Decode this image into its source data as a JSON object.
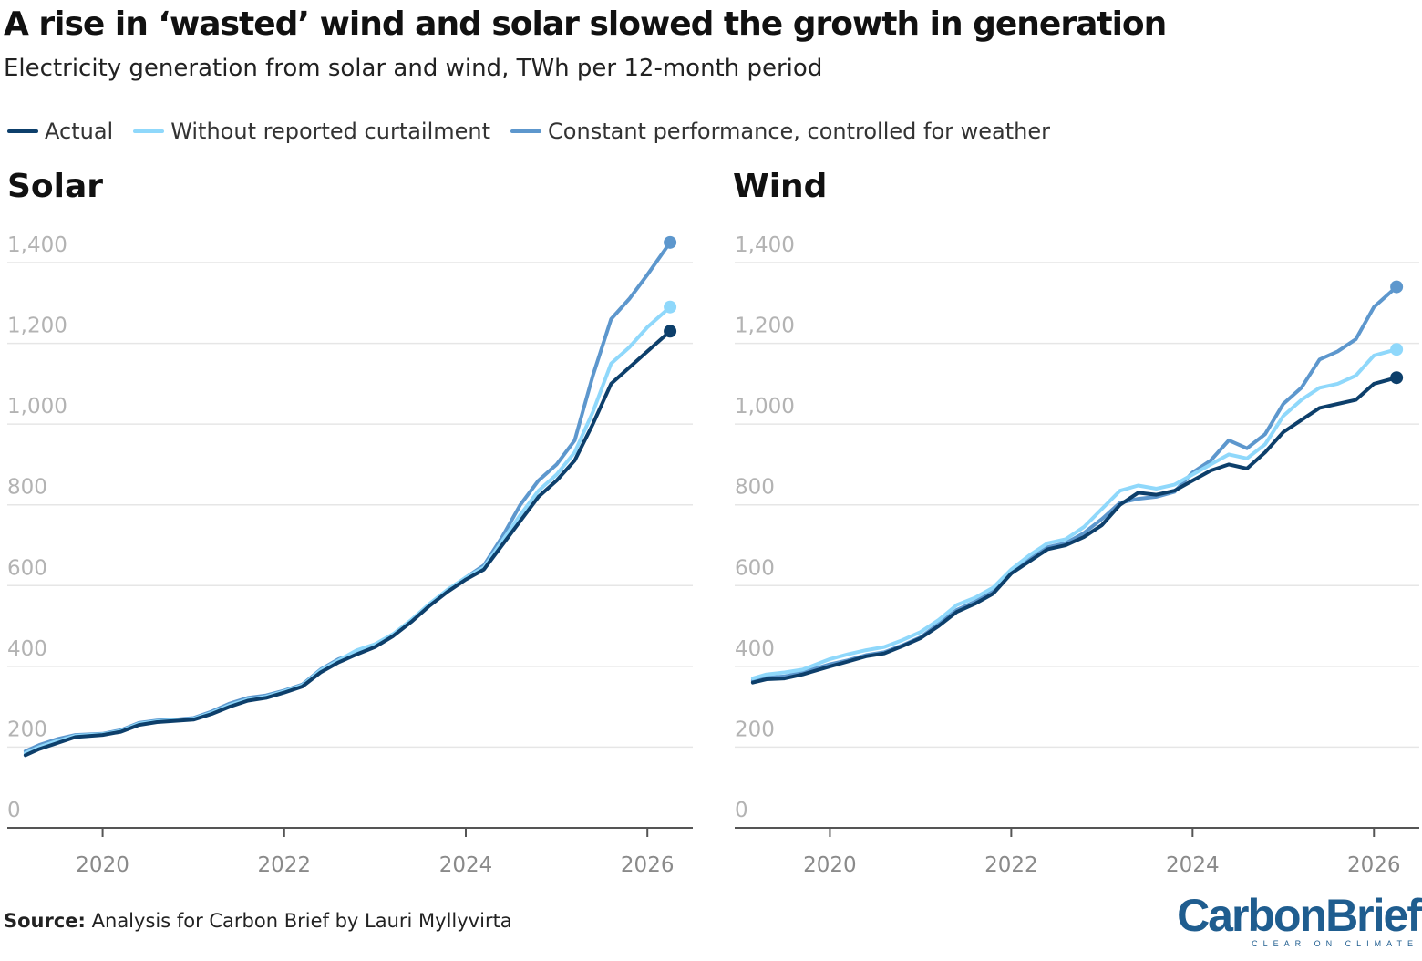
{
  "header": {
    "title": "A rise in ‘wasted’ wind and solar slowed the growth in generation",
    "subtitle": "Electricity generation from solar and wind, TWh per 12-month period"
  },
  "legend": [
    {
      "label": "Actual",
      "color": "#0d3f6b"
    },
    {
      "label": "Without reported curtailment",
      "color": "#8fd8fb"
    },
    {
      "label": "Constant performance, controlled for weather",
      "color": "#5d97cd"
    }
  ],
  "footer": {
    "source_label": "Source:",
    "source_text": "Analysis for Carbon Brief by Lauri Myllyvirta",
    "logo": "CarbonBrief",
    "logo_tagline": "CLEAR ON CLIMATE"
  },
  "chart_data": [
    {
      "type": "line",
      "title": "Solar",
      "xlabel": "",
      "ylabel": "",
      "ylim": [
        0,
        1400
      ],
      "xlim": [
        2018.95,
        2026.5
      ],
      "yticks": [
        0,
        200,
        400,
        600,
        800,
        1000,
        1200,
        1400
      ],
      "yticklabels": [
        "0",
        "200",
        "400",
        "600",
        "800",
        "1,000",
        "1,200",
        "1,400"
      ],
      "xticks": [
        2020,
        2022,
        2024,
        2026
      ],
      "xticklabels": [
        "2020",
        "2022",
        "2024",
        "2026"
      ],
      "grid": true,
      "series": [
        {
          "name": "Actual",
          "color": "#0d3f6b",
          "x": [
            2019.15,
            2019.3,
            2019.5,
            2019.7,
            2020.0,
            2020.2,
            2020.4,
            2020.6,
            2020.8,
            2021.0,
            2021.2,
            2021.4,
            2021.6,
            2021.8,
            2022.0,
            2022.2,
            2022.4,
            2022.6,
            2022.8,
            2023.0,
            2023.2,
            2023.4,
            2023.6,
            2023.8,
            2024.0,
            2024.2,
            2024.4,
            2024.6,
            2024.8,
            2025.0,
            2025.2,
            2025.4,
            2025.6,
            2025.8,
            2026.0,
            2026.25
          ],
          "y": [
            180,
            195,
            210,
            225,
            230,
            238,
            255,
            262,
            265,
            268,
            282,
            300,
            315,
            322,
            335,
            350,
            385,
            410,
            430,
            448,
            475,
            510,
            550,
            585,
            615,
            640,
            700,
            760,
            820,
            860,
            910,
            1000,
            1100,
            1140,
            1180,
            1230
          ]
        },
        {
          "name": "Without reported curtailment",
          "color": "#8fd8fb",
          "x": [
            2019.15,
            2019.3,
            2019.5,
            2019.7,
            2020.0,
            2020.2,
            2020.4,
            2020.6,
            2020.8,
            2021.0,
            2021.2,
            2021.4,
            2021.6,
            2021.8,
            2022.0,
            2022.2,
            2022.4,
            2022.6,
            2022.8,
            2023.0,
            2023.2,
            2023.4,
            2023.6,
            2023.8,
            2024.0,
            2024.2,
            2024.4,
            2024.6,
            2024.8,
            2025.0,
            2025.2,
            2025.4,
            2025.6,
            2025.8,
            2026.0,
            2026.25
          ],
          "y": [
            185,
            200,
            215,
            228,
            232,
            240,
            258,
            264,
            267,
            270,
            285,
            304,
            318,
            325,
            338,
            353,
            390,
            415,
            440,
            455,
            480,
            515,
            555,
            590,
            620,
            645,
            710,
            775,
            835,
            875,
            930,
            1030,
            1150,
            1190,
            1240,
            1290
          ]
        },
        {
          "name": "Constant performance, controlled for weather",
          "color": "#5d97cd",
          "x": [
            2019.15,
            2019.3,
            2019.5,
            2019.7,
            2020.0,
            2020.2,
            2020.4,
            2020.6,
            2020.8,
            2021.0,
            2021.2,
            2021.4,
            2021.6,
            2021.8,
            2022.0,
            2022.2,
            2022.4,
            2022.6,
            2022.8,
            2023.0,
            2023.2,
            2023.4,
            2023.6,
            2023.8,
            2024.0,
            2024.2,
            2024.4,
            2024.6,
            2024.8,
            2025.0,
            2025.2,
            2025.4,
            2025.6,
            2025.8,
            2026.0,
            2026.25
          ],
          "y": [
            190,
            205,
            220,
            230,
            233,
            242,
            260,
            266,
            268,
            272,
            288,
            308,
            322,
            328,
            340,
            355,
            392,
            418,
            433,
            450,
            478,
            512,
            552,
            588,
            620,
            650,
            720,
            800,
            860,
            900,
            960,
            1120,
            1260,
            1310,
            1370,
            1450
          ]
        }
      ]
    },
    {
      "type": "line",
      "title": "Wind",
      "xlabel": "",
      "ylabel": "",
      "ylim": [
        0,
        1400
      ],
      "xlim": [
        2018.95,
        2026.5
      ],
      "yticks": [
        0,
        200,
        400,
        600,
        800,
        1000,
        1200,
        1400
      ],
      "yticklabels": [
        "0",
        "200",
        "400",
        "600",
        "800",
        "1,000",
        "1,200",
        "1,400"
      ],
      "xticks": [
        2020,
        2022,
        2024,
        2026
      ],
      "xticklabels": [
        "2020",
        "2022",
        "2024",
        "2026"
      ],
      "grid": true,
      "series": [
        {
          "name": "Actual",
          "color": "#0d3f6b",
          "x": [
            2019.15,
            2019.3,
            2019.5,
            2019.7,
            2020.0,
            2020.2,
            2020.4,
            2020.6,
            2020.8,
            2021.0,
            2021.2,
            2021.4,
            2021.6,
            2021.8,
            2022.0,
            2022.2,
            2022.4,
            2022.6,
            2022.8,
            2023.0,
            2023.2,
            2023.4,
            2023.6,
            2023.8,
            2024.0,
            2024.2,
            2024.4,
            2024.6,
            2024.8,
            2025.0,
            2025.2,
            2025.4,
            2025.6,
            2025.8,
            2026.0,
            2026.25
          ],
          "y": [
            360,
            368,
            370,
            380,
            400,
            412,
            425,
            432,
            450,
            470,
            500,
            535,
            555,
            580,
            630,
            660,
            690,
            700,
            720,
            750,
            800,
            830,
            825,
            835,
            860,
            885,
            900,
            890,
            930,
            980,
            1010,
            1040,
            1050,
            1060,
            1100,
            1115
          ]
        },
        {
          "name": "Without reported curtailment",
          "color": "#8fd8fb",
          "x": [
            2019.15,
            2019.3,
            2019.5,
            2019.7,
            2020.0,
            2020.2,
            2020.4,
            2020.6,
            2020.8,
            2021.0,
            2021.2,
            2021.4,
            2021.6,
            2021.8,
            2022.0,
            2022.2,
            2022.4,
            2022.6,
            2022.8,
            2023.0,
            2023.2,
            2023.4,
            2023.6,
            2023.8,
            2024.0,
            2024.2,
            2024.4,
            2024.6,
            2024.8,
            2025.0,
            2025.2,
            2025.4,
            2025.6,
            2025.8,
            2026.0,
            2026.25
          ],
          "y": [
            370,
            380,
            385,
            392,
            418,
            430,
            440,
            448,
            465,
            485,
            515,
            552,
            570,
            595,
            640,
            675,
            705,
            715,
            745,
            790,
            835,
            848,
            840,
            850,
            875,
            900,
            925,
            915,
            950,
            1020,
            1060,
            1090,
            1100,
            1120,
            1170,
            1185
          ]
        },
        {
          "name": "Constant performance, controlled for weather",
          "color": "#5d97cd",
          "x": [
            2019.15,
            2019.3,
            2019.5,
            2019.7,
            2020.0,
            2020.2,
            2020.4,
            2020.6,
            2020.8,
            2021.0,
            2021.2,
            2021.4,
            2021.6,
            2021.8,
            2022.0,
            2022.2,
            2022.4,
            2022.6,
            2022.8,
            2023.0,
            2023.2,
            2023.4,
            2023.6,
            2023.8,
            2024.0,
            2024.2,
            2024.4,
            2024.6,
            2024.8,
            2025.0,
            2025.2,
            2025.4,
            2025.6,
            2025.8,
            2026.0,
            2026.25
          ],
          "y": [
            365,
            372,
            375,
            385,
            405,
            415,
            428,
            435,
            452,
            472,
            505,
            540,
            560,
            585,
            635,
            665,
            695,
            705,
            730,
            765,
            805,
            815,
            820,
            832,
            880,
            910,
            960,
            940,
            975,
            1050,
            1090,
            1160,
            1180,
            1210,
            1290,
            1340
          ]
        }
      ]
    }
  ]
}
